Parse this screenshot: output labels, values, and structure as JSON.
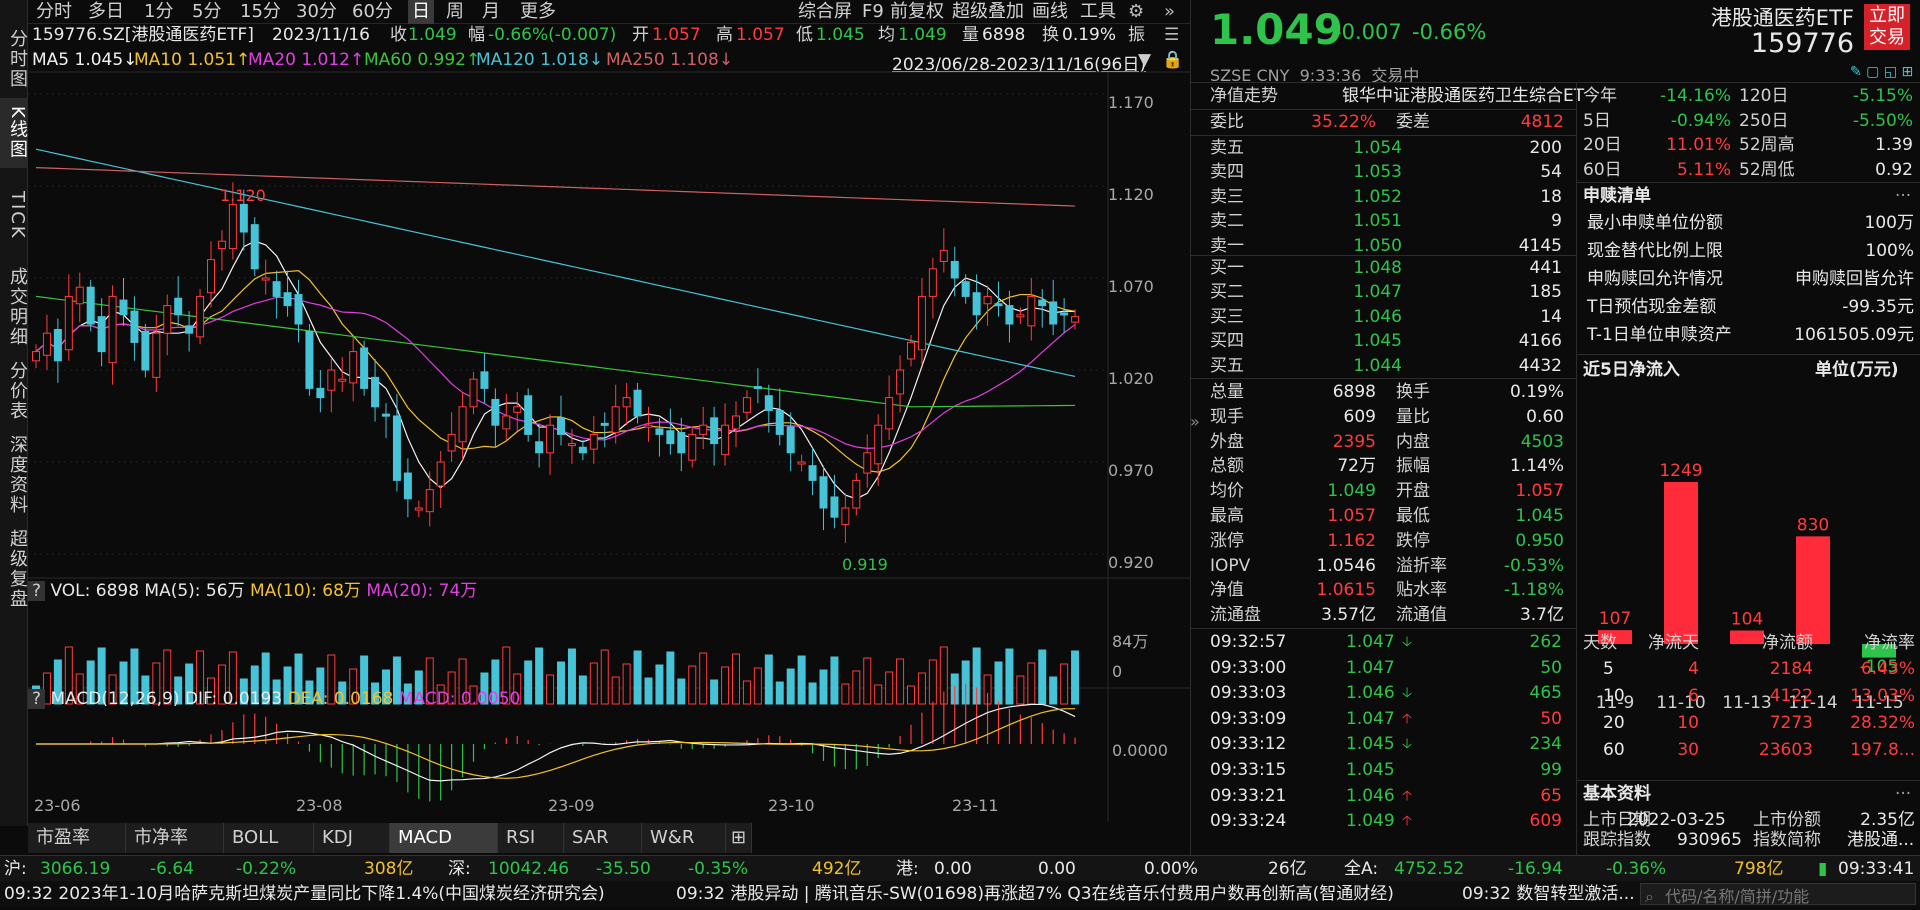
{
  "left_nav": [
    "分时图",
    "K线图",
    "TICK",
    "成交明细",
    "分价表",
    "深度资料",
    "超级复盘"
  ],
  "toolbar": {
    "periods": [
      "分时",
      "多日",
      "1分",
      "5分",
      "15分",
      "30分",
      "60分",
      "日",
      "周",
      "月",
      "更多"
    ],
    "active_period": "日",
    "tools": [
      "综合屏",
      "F9",
      "前复权",
      "超级叠加",
      "画线",
      "工具"
    ]
  },
  "quote_line": {
    "code": "159776.SZ[港股通医药ETF]",
    "date": "2023/11/16",
    "close_l": "收",
    "close": "1.049",
    "range_l": "幅",
    "range": "-0.66%(-0.007)",
    "open_l": "开",
    "open": "1.057",
    "high_l": "高",
    "high": "1.057",
    "low_l": "低",
    "low": "1.045",
    "avg_l": "均",
    "avg": "1.049",
    "vol_l": "量",
    "vol": "6898",
    "turn_l": "换",
    "turn": "0.19%",
    "amp_l": "振"
  },
  "ma_line": {
    "ma5": "MA5 1.045↓",
    "ma10": "MA10 1.051↑",
    "ma20": "MA20 1.012↑",
    "ma60": "MA60 0.992↑",
    "ma120": "MA120 1.018↓",
    "ma250": "MA250 1.108↓",
    "range": "2023/06/28-2023/11/16(96日)"
  },
  "price_axis": [
    "1.170",
    "1.120",
    "1.070",
    "1.020",
    "0.970",
    "0.920"
  ],
  "annotations": {
    "high": "1.120",
    "low": "0.919"
  },
  "vol_panel": {
    "title_q": "?",
    "title": "VOL: 6898",
    "ma5": "MA(5): 56万",
    "ma10": "MA(10): 68万",
    "ma20": "MA(20): 74万",
    "axis_top": "84万",
    "axis_zero": "0"
  },
  "macd_panel": {
    "title_q": "?",
    "title": "MACD(12,26,9)",
    "dif": "DIF: 0.0193",
    "dea": "DEA: 0.0168",
    "macd": "MACD: 0.0050",
    "axis_zero": "0.0000"
  },
  "date_axis": [
    "23-06",
    "23-08",
    "23-09",
    "23-10",
    "23-11"
  ],
  "indicator_tabs": [
    "市盈率",
    "市净率",
    "BOLL",
    "KDJ",
    "MACD",
    "RSI",
    "SAR",
    "W&R"
  ],
  "active_indicator": "MACD",
  "header": {
    "price": "1.049",
    "change": "-0.007",
    "pct": "-0.66%",
    "name": "港股通医药ETF",
    "code": "159776",
    "market": "SZSE CNY",
    "time": "9:33:36",
    "status": "交易中",
    "trade_button": "立即交易"
  },
  "nav_trend": {
    "label": "净值走势",
    "index": "银华中证港股通医药卫生综合ET"
  },
  "weibi": {
    "l1": "委比",
    "v1": "35.22%",
    "l2": "委差",
    "v2": "4812"
  },
  "asks": [
    {
      "l": "卖五",
      "p": "1.054",
      "v": "200"
    },
    {
      "l": "卖四",
      "p": "1.053",
      "v": "54"
    },
    {
      "l": "卖三",
      "p": "1.052",
      "v": "18"
    },
    {
      "l": "卖二",
      "p": "1.051",
      "v": "9"
    },
    {
      "l": "卖一",
      "p": "1.050",
      "v": "4145"
    }
  ],
  "bids": [
    {
      "l": "买一",
      "p": "1.048",
      "v": "441"
    },
    {
      "l": "买二",
      "p": "1.047",
      "v": "185"
    },
    {
      "l": "买三",
      "p": "1.046",
      "v": "14"
    },
    {
      "l": "买四",
      "p": "1.045",
      "v": "4166"
    },
    {
      "l": "买五",
      "p": "1.044",
      "v": "4432"
    }
  ],
  "stats": [
    [
      "总量",
      "6898",
      "换手",
      "0.19%"
    ],
    [
      "现手",
      "609",
      "量比",
      "0.60"
    ],
    [
      "外盘",
      "2395",
      "内盘",
      "4503"
    ],
    [
      "总额",
      "72万",
      "振幅",
      "1.14%"
    ],
    [
      "均价",
      "1.049",
      "开盘",
      "1.057"
    ],
    [
      "最高",
      "1.057",
      "最低",
      "1.045"
    ],
    [
      "涨停",
      "1.162",
      "跌停",
      "0.950"
    ],
    [
      "IOPV",
      "1.0546",
      "溢折率",
      "-0.53%"
    ],
    [
      "净值",
      "1.0615",
      "贴水率",
      "-1.18%"
    ],
    [
      "流通盘",
      "3.57亿",
      "流通值",
      "3.7亿"
    ]
  ],
  "ticks": [
    {
      "t": "09:32:57",
      "p": "1.047",
      "d": "down",
      "v": "262",
      "vc": "green"
    },
    {
      "t": "09:33:00",
      "p": "1.047",
      "d": "",
      "v": "50",
      "vc": "green"
    },
    {
      "t": "09:33:03",
      "p": "1.046",
      "d": "down",
      "v": "465",
      "vc": "green"
    },
    {
      "t": "09:33:09",
      "p": "1.047",
      "d": "up",
      "v": "50",
      "vc": "red"
    },
    {
      "t": "09:33:12",
      "p": "1.045",
      "d": "down",
      "v": "234",
      "vc": "green"
    },
    {
      "t": "09:33:15",
      "p": "1.045",
      "d": "",
      "v": "99",
      "vc": "green"
    },
    {
      "t": "09:33:21",
      "p": "1.046",
      "d": "up",
      "v": "65",
      "vc": "red"
    },
    {
      "t": "09:33:24",
      "p": "1.049",
      "d": "up",
      "v": "609",
      "vc": "red"
    }
  ],
  "perf": [
    [
      "今年",
      "-14.16%",
      "120日",
      "-5.15%"
    ],
    [
      "5日",
      "-0.94%",
      "250日",
      "-5.50%"
    ],
    [
      "20日",
      "11.01%",
      "52周高",
      "1.39"
    ],
    [
      "60日",
      "5.11%",
      "52周低",
      "0.92"
    ]
  ],
  "subscribe": {
    "title": "申赎清单",
    "more": "···",
    "rows": [
      [
        "最小申赎单位份额",
        "100万"
      ],
      [
        "现金替代比例上限",
        "100%"
      ],
      [
        "申购赎回允许情况",
        "申购赎回皆允许"
      ],
      [
        "T日预估现金差额",
        "-99.35元"
      ],
      [
        "T-1日单位申赎资产",
        "1061505.09元"
      ]
    ]
  },
  "netflow": {
    "title": "近5日净流入",
    "unit": "单位(万元)",
    "dates": [
      "11-9",
      "11-10",
      "11-13",
      "11-14",
      "11-15"
    ],
    "values": [
      107,
      1249,
      104,
      830,
      -105
    ]
  },
  "flow_table": {
    "headers": [
      "天数",
      "净流天",
      "净流额",
      "净流率"
    ],
    "rows": [
      [
        "5",
        "4",
        "2184",
        "6.43%"
      ],
      [
        "10",
        "6",
        "4122",
        "13.03%"
      ],
      [
        "20",
        "10",
        "7273",
        "28.32%"
      ],
      [
        "60",
        "30",
        "23603",
        "197.8..."
      ]
    ]
  },
  "basic": {
    "title": "基本资料",
    "more": "···",
    "l1": "上市日期",
    "v1": "2022-03-25",
    "l2": "上市份额",
    "v2": "2.35亿",
    "l3": "跟踪指数",
    "v3": "930965",
    "l4": "指数简称",
    "v4": "港股通..."
  },
  "indexbar": {
    "sh_l": "沪:",
    "sh_v": "3066.19",
    "sh_c": "-6.64",
    "sh_p": "-0.22%",
    "sh_a": "308亿",
    "sz_l": "深:",
    "sz_v": "10042.46",
    "sz_c": "-35.50",
    "sz_p": "-0.35%",
    "sz_a": "492亿",
    "hk_l": "港:",
    "hk_v": "0.00",
    "hk_c": "0.00",
    "hk_p": "0.00%",
    "hk_a": "26亿",
    "qa_l": "全A:",
    "qa_v": "4752.52",
    "qa_c": "-16.94",
    "qa_p": "-0.36%",
    "qa_a": "798亿",
    "clock": "09:33:41"
  },
  "news": [
    "09:32  2023年1-10月哈萨克斯坦煤炭产量同比下降1.4%(中国煤炭经济研究会)",
    "09:32  港股异动 | 腾讯音乐-SW(01698)再涨超7% Q3在线音乐付费用户数再创新高(智通财经)",
    "09:32  数智转型激活..."
  ],
  "search_placeholder": "代码/名称/简拼/功能",
  "colors": {
    "up": "#ff3b3b",
    "down": "#2ec44c",
    "candle_down": "#46c3d6",
    "ma5": "#f2f2f2",
    "ma10": "#f2c12e",
    "ma20": "#e23fe3",
    "ma60": "#3bc43b",
    "ma120": "#46c3d6",
    "ma250": "#d06060"
  }
}
